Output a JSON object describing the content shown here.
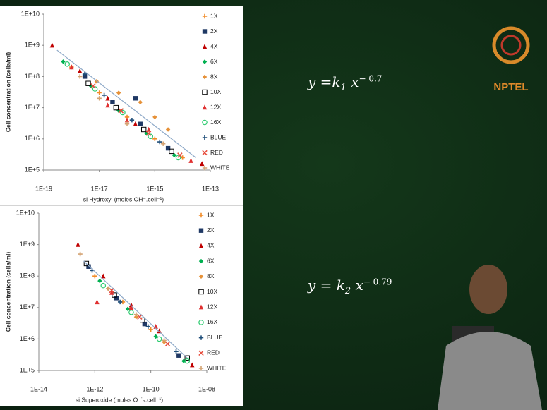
{
  "chart_data": [
    {
      "type": "scatter",
      "xscale": "log",
      "yscale": "log",
      "legend": "right",
      "xlabel": "si Hydroxyl (moles OH⁻.cell⁻¹)",
      "ylabel": "Cell concentration (cells/ml)",
      "xlim": [
        1e-19,
        1e-13
      ],
      "ylim": [
        100000,
        10000000000
      ],
      "xticks": [
        {
          "value": 1e-19,
          "label": "1E-19"
        },
        {
          "value": 1e-17,
          "label": "1E-17"
        },
        {
          "value": 1e-15,
          "label": "1E-15"
        },
        {
          "value": 1e-13,
          "label": "1E-13"
        }
      ],
      "yticks": [
        {
          "value": 100000,
          "label": "1E+5"
        },
        {
          "value": 1000000,
          "label": "1E+6"
        },
        {
          "value": 10000000,
          "label": "1E+7"
        },
        {
          "value": 100000000,
          "label": "1E+8"
        },
        {
          "value": 1000000000,
          "label": "1E+9"
        },
        {
          "value": 10000000000,
          "label": "1E+10"
        }
      ],
      "trendline": {
        "color": "#8ea9c8",
        "x": [
          3e-19,
          3e-14
        ],
        "values": [
          700000000,
          250000
        ]
      },
      "series": [
        {
          "name": "1X",
          "color": "#f28c28",
          "marker": "plus",
          "x": [
            1e-18,
            1e-17,
            1e-16,
            1e-15,
            1e-14
          ],
          "values": [
            200000000,
            30000000,
            5000000,
            1000000,
            250000
          ]
        },
        {
          "name": "2X",
          "color": "#1f3864",
          "marker": "square",
          "x": [
            3e-18,
            3e-17,
            3e-16,
            3e-15,
            2e-16
          ],
          "values": [
            100000000,
            15000000,
            3000000,
            500000,
            20000000
          ]
        },
        {
          "name": "4X",
          "color": "#c00000",
          "marker": "triangle",
          "x": [
            2e-19,
            2e-18,
            2e-17,
            2e-16,
            5e-14
          ],
          "values": [
            1000000000,
            150000000,
            20000000,
            3000000,
            160000
          ]
        },
        {
          "name": "6X",
          "color": "#00b050",
          "marker": "diamond",
          "x": [
            5e-19,
            5e-18,
            5e-17,
            5e-16,
            5e-15
          ],
          "values": [
            300000000,
            50000000,
            8000000,
            1500000,
            300000
          ]
        },
        {
          "name": "8X",
          "color": "#e69138",
          "marker": "diamond",
          "x": [
            8e-18,
            5e-17,
            3e-16,
            1e-15,
            3e-15
          ],
          "values": [
            70000000,
            30000000,
            15000000,
            5000000,
            2000000
          ]
        },
        {
          "name": "10X",
          "color": "#000000",
          "marker": "open-square",
          "x": [
            4e-18,
            4e-17,
            4e-16,
            4e-15
          ],
          "values": [
            60000000,
            10000000,
            2000000,
            400000
          ]
        },
        {
          "name": "12X",
          "color": "#e03030",
          "marker": "triangle",
          "x": [
            1e-18,
            2e-17,
            1e-16,
            6e-16,
            2e-14
          ],
          "values": [
            200000000,
            12000000,
            4000000,
            2000000,
            200000
          ]
        },
        {
          "name": "16X",
          "color": "#2ecc71",
          "marker": "open-circle",
          "x": [
            7e-19,
            7e-18,
            7e-17,
            7e-16,
            7e-15
          ],
          "values": [
            250000000,
            40000000,
            7000000,
            1200000,
            250000
          ]
        },
        {
          "name": "BLUE",
          "color": "#1f4e79",
          "marker": "plus",
          "x": [
            3e-18,
            1.5e-17,
            1.5e-16,
            1.5e-15
          ],
          "values": [
            120000000,
            25000000,
            4000000,
            800000
          ]
        },
        {
          "name": "RED",
          "color": "#e74c3c",
          "marker": "x",
          "x": [
            6e-18,
            6e-17,
            6e-16,
            8e-15
          ],
          "values": [
            50000000,
            8000000,
            1500000,
            300000
          ]
        },
        {
          "name": "WHITE",
          "color": "#d4a373",
          "marker": "plus",
          "x": [
            2e-18,
            1e-17,
            1e-16,
            2e-15
          ],
          "values": [
            100000000,
            20000000,
            3000000,
            700000
          ]
        }
      ]
    },
    {
      "type": "scatter",
      "xscale": "log",
      "yscale": "log",
      "legend": "right",
      "xlabel": "si Superoxide (moles O⁻˙₂.cell⁻¹)",
      "ylabel": "Cell concentration (cells/ml)",
      "xlim": [
        1e-14,
        1e-08
      ],
      "ylim": [
        100000,
        10000000000
      ],
      "xticks": [
        {
          "value": 1e-14,
          "label": "1E-14"
        },
        {
          "value": 1e-12,
          "label": "1E-12"
        },
        {
          "value": 1e-10,
          "label": "1E-10"
        },
        {
          "value": 1e-08,
          "label": "1E-08"
        }
      ],
      "yticks": [
        {
          "value": 100000,
          "label": "1E+5"
        },
        {
          "value": 1000000,
          "label": "1E+6"
        },
        {
          "value": 10000000,
          "label": "1E+7"
        },
        {
          "value": 100000000,
          "label": "1E+8"
        },
        {
          "value": 1000000000,
          "label": "1E+9"
        },
        {
          "value": 10000000000,
          "label": "1E+10"
        }
      ],
      "trendline": {
        "color": "#8ea9c8",
        "x": [
          4e-13,
          2e-09
        ],
        "values": [
          300000000,
          250000
        ]
      },
      "series": [
        {
          "name": "1X",
          "color": "#f28c28",
          "marker": "plus",
          "x": [
            1e-12,
            1e-11,
            1e-10,
            1e-09
          ],
          "values": [
            100000000,
            15000000,
            2000000,
            300000
          ]
        },
        {
          "name": "2X",
          "color": "#1f3864",
          "marker": "square",
          "x": [
            6e-13,
            6e-12,
            6e-11,
            1e-09
          ],
          "values": [
            200000000,
            20000000,
            3000000,
            300000
          ]
        },
        {
          "name": "4X",
          "color": "#c00000",
          "marker": "triangle",
          "x": [
            2.5e-13,
            2e-12,
            2e-11,
            2e-10,
            3e-09
          ],
          "values": [
            1000000000,
            100000000,
            12000000,
            1800000,
            150000
          ]
        },
        {
          "name": "6X",
          "color": "#00b050",
          "marker": "diamond",
          "x": [
            1.5e-12,
            1.5e-11,
            1.5e-10,
            1.5e-09
          ],
          "values": [
            70000000,
            9000000,
            1200000,
            200000
          ]
        },
        {
          "name": "8X",
          "color": "#e69138",
          "marker": "diamond",
          "x": [
            3e-12,
            3e-11,
            3e-10
          ],
          "values": [
            40000000,
            5000000,
            800000
          ]
        },
        {
          "name": "10X",
          "color": "#000000",
          "marker": "open-square",
          "x": [
            5e-13,
            5e-12,
            5e-11,
            2e-09
          ],
          "values": [
            250000000,
            25000000,
            4000000,
            250000
          ]
        },
        {
          "name": "12X",
          "color": "#e03030",
          "marker": "triangle",
          "x": [
            1.2e-12,
            4e-12,
            2e-11,
            1.5e-10
          ],
          "values": [
            15000000,
            30000000,
            10000000,
            2500000
          ]
        },
        {
          "name": "16X",
          "color": "#2ecc71",
          "marker": "open-circle",
          "x": [
            2e-12,
            2e-11,
            2e-10,
            2e-09
          ],
          "values": [
            50000000,
            7000000,
            1000000,
            200000
          ]
        },
        {
          "name": "BLUE",
          "color": "#1f4e79",
          "marker": "plus",
          "x": [
            8e-13,
            8e-12,
            8e-11,
            8e-10
          ],
          "values": [
            150000000,
            15000000,
            2500000,
            400000
          ]
        },
        {
          "name": "RED",
          "color": "#e74c3c",
          "marker": "x",
          "x": [
            4e-12,
            4e-11,
            4e-10
          ],
          "values": [
            35000000,
            5000000,
            700000
          ]
        },
        {
          "name": "WHITE",
          "color": "#d4a373",
          "marker": "plus",
          "x": [
            3e-13,
            3e-12,
            3e-11,
            3e-10
          ],
          "values": [
            500000000,
            40000000,
            6000000,
            900000
          ]
        }
      ]
    }
  ],
  "equations": [
    {
      "lhs": "y =k",
      "sub": "1",
      "var": "x",
      "exp": "− 0.7"
    },
    {
      "lhs": "y = k",
      "sub": "2",
      "var": "x",
      "exp": "− 0.79"
    }
  ],
  "logo": {
    "text": "NPTEL"
  }
}
